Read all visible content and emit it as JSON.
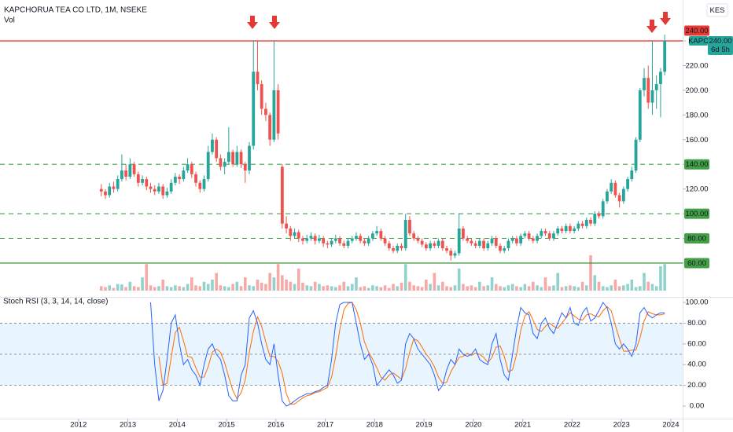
{
  "chart_data": {
    "type": "candlestick",
    "title": "KAPCHORUA TEA CO LTD, 1M, NSEKE",
    "volume_title": "Vol",
    "currency": "KES",
    "up_color": "#26a69a",
    "down_color": "#ef5350",
    "ylim": [
      32.6,
      260.4
    ],
    "yticks": [
      {
        "value": 60,
        "label": "60.00"
      },
      {
        "value": 80,
        "label": "80.00"
      },
      {
        "value": 100,
        "label": "100.00"
      },
      {
        "value": 120,
        "label": "120.00"
      },
      {
        "value": 140,
        "label": "140.00"
      },
      {
        "value": 160,
        "label": "160.00"
      },
      {
        "value": 180,
        "label": "180.00"
      },
      {
        "value": 200,
        "label": "200.00"
      },
      {
        "value": 220,
        "label": "220.00"
      },
      {
        "value": 240,
        "label": "240.00"
      }
    ],
    "xlim": [
      2010.41,
      2024.24
    ],
    "xticks": [
      2012,
      2013,
      2014,
      2015,
      2016,
      2017,
      2018,
      2019,
      2020,
      2021,
      2022,
      2023,
      2024
    ],
    "levels": [
      {
        "value": 240,
        "color": "#e53935",
        "style": "solid"
      },
      {
        "value": 140,
        "color": "#43a047",
        "style": "dashed"
      },
      {
        "value": 100,
        "color": "#43a047",
        "style": "dashed"
      },
      {
        "value": 80,
        "color": "#43a047",
        "style": "dashed"
      },
      {
        "value": 60,
        "color": "#43a047",
        "style": "solid"
      }
    ],
    "last_tag": {
      "symbol": "KAPC",
      "price": "240.00",
      "countdown": "6d 5h"
    },
    "ohlc": [
      [
        120,
        124,
        114,
        118
      ],
      [
        118,
        120,
        112,
        115
      ],
      [
        115,
        125,
        113,
        122
      ],
      [
        122,
        126,
        117,
        120
      ],
      [
        120,
        131,
        118,
        128
      ],
      [
        128,
        148,
        126,
        135
      ],
      [
        135,
        140,
        127,
        130
      ],
      [
        130,
        145,
        128,
        140
      ],
      [
        140,
        142,
        130,
        132
      ],
      [
        132,
        134,
        122,
        125
      ],
      [
        125,
        131,
        123,
        128
      ],
      [
        128,
        130,
        119,
        122
      ],
      [
        122,
        125,
        117,
        120
      ],
      [
        120,
        123,
        115,
        118
      ],
      [
        118,
        125,
        116,
        122
      ],
      [
        122,
        124,
        112,
        115
      ],
      [
        115,
        121,
        113,
        118
      ],
      [
        118,
        128,
        116,
        125
      ],
      [
        125,
        133,
        123,
        130
      ],
      [
        130,
        132,
        124,
        128
      ],
      [
        128,
        138,
        126,
        135
      ],
      [
        135,
        145,
        133,
        140
      ],
      [
        140,
        142,
        129,
        132
      ],
      [
        132,
        134,
        122,
        125
      ],
      [
        125,
        127,
        117,
        120
      ],
      [
        120,
        131,
        118,
        128
      ],
      [
        128,
        155,
        126,
        150
      ],
      [
        150,
        165,
        148,
        160
      ],
      [
        160,
        162,
        142,
        145
      ],
      [
        145,
        148,
        135,
        138
      ],
      [
        138,
        145,
        132,
        142
      ],
      [
        142,
        170,
        140,
        150
      ],
      [
        150,
        152,
        138,
        140
      ],
      [
        140,
        155,
        138,
        150
      ],
      [
        150,
        152,
        137,
        140
      ],
      [
        140,
        142,
        125,
        135
      ],
      [
        135,
        158,
        132,
        155
      ],
      [
        155,
        240,
        152,
        215
      ],
      [
        215,
        240,
        200,
        205
      ],
      [
        205,
        208,
        180,
        185
      ],
      [
        185,
        190,
        175,
        180
      ],
      [
        180,
        182,
        155,
        160
      ],
      [
        160,
        240,
        158,
        200
      ],
      [
        200,
        205,
        160,
        165
      ],
      [
        138,
        140,
        88,
        92
      ],
      [
        92,
        98,
        84,
        88
      ],
      [
        88,
        90,
        78,
        82
      ],
      [
        82,
        88,
        80,
        85
      ],
      [
        85,
        87,
        77,
        80
      ],
      [
        80,
        82,
        75,
        78
      ],
      [
        78,
        83,
        76,
        80
      ],
      [
        80,
        85,
        78,
        82
      ],
      [
        82,
        84,
        75,
        78
      ],
      [
        78,
        83,
        76,
        80
      ],
      [
        80,
        82,
        73,
        76
      ],
      [
        76,
        78,
        72,
        75
      ],
      [
        75,
        80,
        73,
        78
      ],
      [
        78,
        83,
        76,
        80
      ],
      [
        80,
        82,
        74,
        76
      ],
      [
        76,
        78,
        72,
        74
      ],
      [
        74,
        80,
        72,
        78
      ],
      [
        78,
        82,
        76,
        80
      ],
      [
        80,
        85,
        78,
        82
      ],
      [
        82,
        84,
        76,
        78
      ],
      [
        78,
        80,
        74,
        76
      ],
      [
        76,
        82,
        74,
        80
      ],
      [
        80,
        86,
        78,
        84
      ],
      [
        84,
        90,
        82,
        86
      ],
      [
        86,
        88,
        78,
        80
      ],
      [
        80,
        82,
        74,
        76
      ],
      [
        76,
        78,
        70,
        72
      ],
      [
        72,
        74,
        68,
        70
      ],
      [
        70,
        76,
        68,
        74
      ],
      [
        74,
        76,
        70,
        72
      ],
      [
        72,
        100,
        70,
        95
      ],
      [
        95,
        98,
        82,
        84
      ],
      [
        84,
        86,
        78,
        80
      ],
      [
        80,
        82,
        76,
        78
      ],
      [
        78,
        80,
        73,
        75
      ],
      [
        75,
        77,
        70,
        72
      ],
      [
        72,
        78,
        70,
        76
      ],
      [
        76,
        78,
        72,
        74
      ],
      [
        74,
        80,
        72,
        78
      ],
      [
        78,
        80,
        70,
        72
      ],
      [
        72,
        74,
        68,
        70
      ],
      [
        70,
        72,
        62,
        66
      ],
      [
        66,
        70,
        64,
        68
      ],
      [
        68,
        100,
        66,
        88
      ],
      [
        88,
        90,
        78,
        80
      ],
      [
        80,
        82,
        76,
        78
      ],
      [
        78,
        80,
        74,
        76
      ],
      [
        76,
        78,
        72,
        74
      ],
      [
        74,
        80,
        72,
        78
      ],
      [
        78,
        80,
        70,
        72
      ],
      [
        72,
        78,
        70,
        76
      ],
      [
        76,
        82,
        74,
        80
      ],
      [
        80,
        82,
        72,
        74
      ],
      [
        74,
        76,
        68,
        70
      ],
      [
        70,
        74,
        68,
        72
      ],
      [
        72,
        80,
        70,
        78
      ],
      [
        78,
        82,
        76,
        80
      ],
      [
        80,
        82,
        74,
        76
      ],
      [
        76,
        84,
        74,
        82
      ],
      [
        82,
        86,
        80,
        84
      ],
      [
        84,
        86,
        78,
        80
      ],
      [
        80,
        82,
        76,
        78
      ],
      [
        78,
        84,
        76,
        82
      ],
      [
        82,
        88,
        80,
        86
      ],
      [
        86,
        88,
        82,
        84
      ],
      [
        84,
        86,
        78,
        80
      ],
      [
        80,
        86,
        78,
        84
      ],
      [
        84,
        90,
        82,
        88
      ],
      [
        88,
        90,
        84,
        86
      ],
      [
        86,
        92,
        84,
        90
      ],
      [
        90,
        92,
        84,
        86
      ],
      [
        86,
        90,
        84,
        88
      ],
      [
        88,
        94,
        86,
        92
      ],
      [
        92,
        94,
        88,
        90
      ],
      [
        90,
        97,
        88,
        95
      ],
      [
        95,
        97,
        90,
        92
      ],
      [
        92,
        102,
        90,
        100
      ],
      [
        100,
        102,
        96,
        98
      ],
      [
        98,
        112,
        96,
        110
      ],
      [
        110,
        120,
        108,
        118
      ],
      [
        118,
        128,
        116,
        125
      ],
      [
        125,
        127,
        113,
        115
      ],
      [
        115,
        117,
        105,
        110
      ],
      [
        110,
        122,
        108,
        120
      ],
      [
        120,
        130,
        118,
        128
      ],
      [
        128,
        138,
        126,
        135
      ],
      [
        135,
        162,
        133,
        160
      ],
      [
        160,
        202,
        158,
        200
      ],
      [
        200,
        218,
        195,
        210
      ],
      [
        210,
        220,
        185,
        190
      ],
      [
        190,
        240,
        180,
        200
      ],
      [
        200,
        212,
        185,
        205
      ],
      [
        205,
        218,
        178,
        215
      ],
      [
        215,
        245,
        212,
        240
      ]
    ],
    "volume": [
      10,
      8,
      12,
      6,
      15,
      14,
      8,
      20,
      10,
      8,
      30,
      60,
      12,
      8,
      10,
      25,
      10,
      8,
      12,
      10,
      8,
      15,
      30,
      12,
      10,
      20,
      15,
      25,
      40,
      12,
      10,
      8,
      15,
      20,
      10,
      30,
      12,
      10,
      25,
      18,
      15,
      40,
      30,
      60,
      35,
      25,
      20,
      15,
      50,
      18,
      12,
      10,
      20,
      15,
      10,
      12,
      10,
      8,
      12,
      20,
      10,
      15,
      30,
      8,
      10,
      6,
      12,
      10,
      8,
      12,
      6,
      15,
      10,
      18,
      60,
      20,
      12,
      10,
      8,
      25,
      15,
      40,
      12,
      20,
      10,
      8,
      12,
      50,
      15,
      10,
      12,
      8,
      20,
      10,
      12,
      30,
      15,
      10,
      8,
      12,
      15,
      10,
      8,
      15,
      10,
      20,
      12,
      8,
      30,
      10,
      12,
      40,
      8,
      10,
      12,
      10,
      8,
      20,
      12,
      80,
      35,
      20,
      10,
      8,
      12,
      25,
      10,
      12,
      15,
      25,
      8,
      10,
      40,
      20,
      15,
      10,
      55,
      60
    ],
    "stoch": {
      "title": "Stoch RSI (3, 3, 14, 14, close)",
      "ylim": [
        -13.6,
        103.8
      ],
      "yticks": [
        {
          "value": 0,
          "label": "0.00"
        },
        {
          "value": 20,
          "label": "20.00"
        },
        {
          "value": 40,
          "label": "40.00"
        },
        {
          "value": 60,
          "label": "60.00"
        },
        {
          "value": 80,
          "label": "80.00"
        },
        {
          "value": 100,
          "label": "100.00"
        }
      ],
      "band": [
        20,
        80
      ],
      "levels": [
        80,
        50,
        20
      ],
      "k_color": "#2962ff",
      "d_color": "#ff6d00",
      "k": [
        null,
        null,
        null,
        null,
        null,
        null,
        null,
        null,
        null,
        null,
        null,
        null,
        100,
        40,
        5,
        15,
        45,
        80,
        88,
        60,
        40,
        45,
        35,
        30,
        20,
        40,
        55,
        60,
        50,
        45,
        30,
        10,
        5,
        5,
        30,
        40,
        85,
        92,
        80,
        60,
        45,
        40,
        60,
        30,
        5,
        0,
        2,
        5,
        8,
        10,
        12,
        12,
        14,
        15,
        18,
        20,
        45,
        80,
        98,
        100,
        100,
        100,
        80,
        60,
        45,
        50,
        40,
        20,
        25,
        30,
        35,
        30,
        22,
        25,
        60,
        70,
        65,
        55,
        50,
        45,
        40,
        30,
        15,
        20,
        35,
        45,
        40,
        55,
        50,
        48,
        50,
        55,
        45,
        42,
        40,
        60,
        70,
        45,
        30,
        25,
        50,
        75,
        95,
        90,
        88,
        70,
        65,
        80,
        85,
        75,
        70,
        80,
        90,
        85,
        95,
        80,
        78,
        90,
        95,
        82,
        85,
        92,
        100,
        95,
        80,
        60,
        55,
        60,
        55,
        48,
        60,
        90,
        95,
        88,
        85,
        88,
        90,
        90
      ],
      "d": [
        null,
        null,
        null,
        null,
        null,
        null,
        null,
        null,
        null,
        null,
        null,
        null,
        null,
        null,
        48,
        20,
        22,
        47,
        71,
        76,
        63,
        48,
        47,
        37,
        28,
        28,
        38,
        52,
        55,
        52,
        42,
        28,
        15,
        7,
        13,
        25,
        52,
        72,
        86,
        77,
        62,
        48,
        48,
        43,
        32,
        12,
        2,
        2,
        5,
        8,
        10,
        11,
        13,
        14,
        16,
        18,
        28,
        48,
        74,
        93,
        99,
        100,
        93,
        80,
        62,
        52,
        45,
        37,
        28,
        25,
        30,
        32,
        29,
        26,
        36,
        52,
        65,
        63,
        57,
        50,
        45,
        38,
        28,
        22,
        23,
        33,
        40,
        47,
        48,
        51,
        49,
        51,
        50,
        47,
        42,
        47,
        57,
        58,
        48,
        33,
        35,
        50,
        73,
        87,
        91,
        83,
        74,
        72,
        77,
        80,
        77,
        75,
        80,
        85,
        90,
        87,
        84,
        83,
        88,
        89,
        87,
        86,
        92,
        96,
        92,
        78,
        65,
        53,
        53,
        54,
        54,
        66,
        82,
        91,
        89,
        88,
        88,
        89
      ]
    }
  }
}
